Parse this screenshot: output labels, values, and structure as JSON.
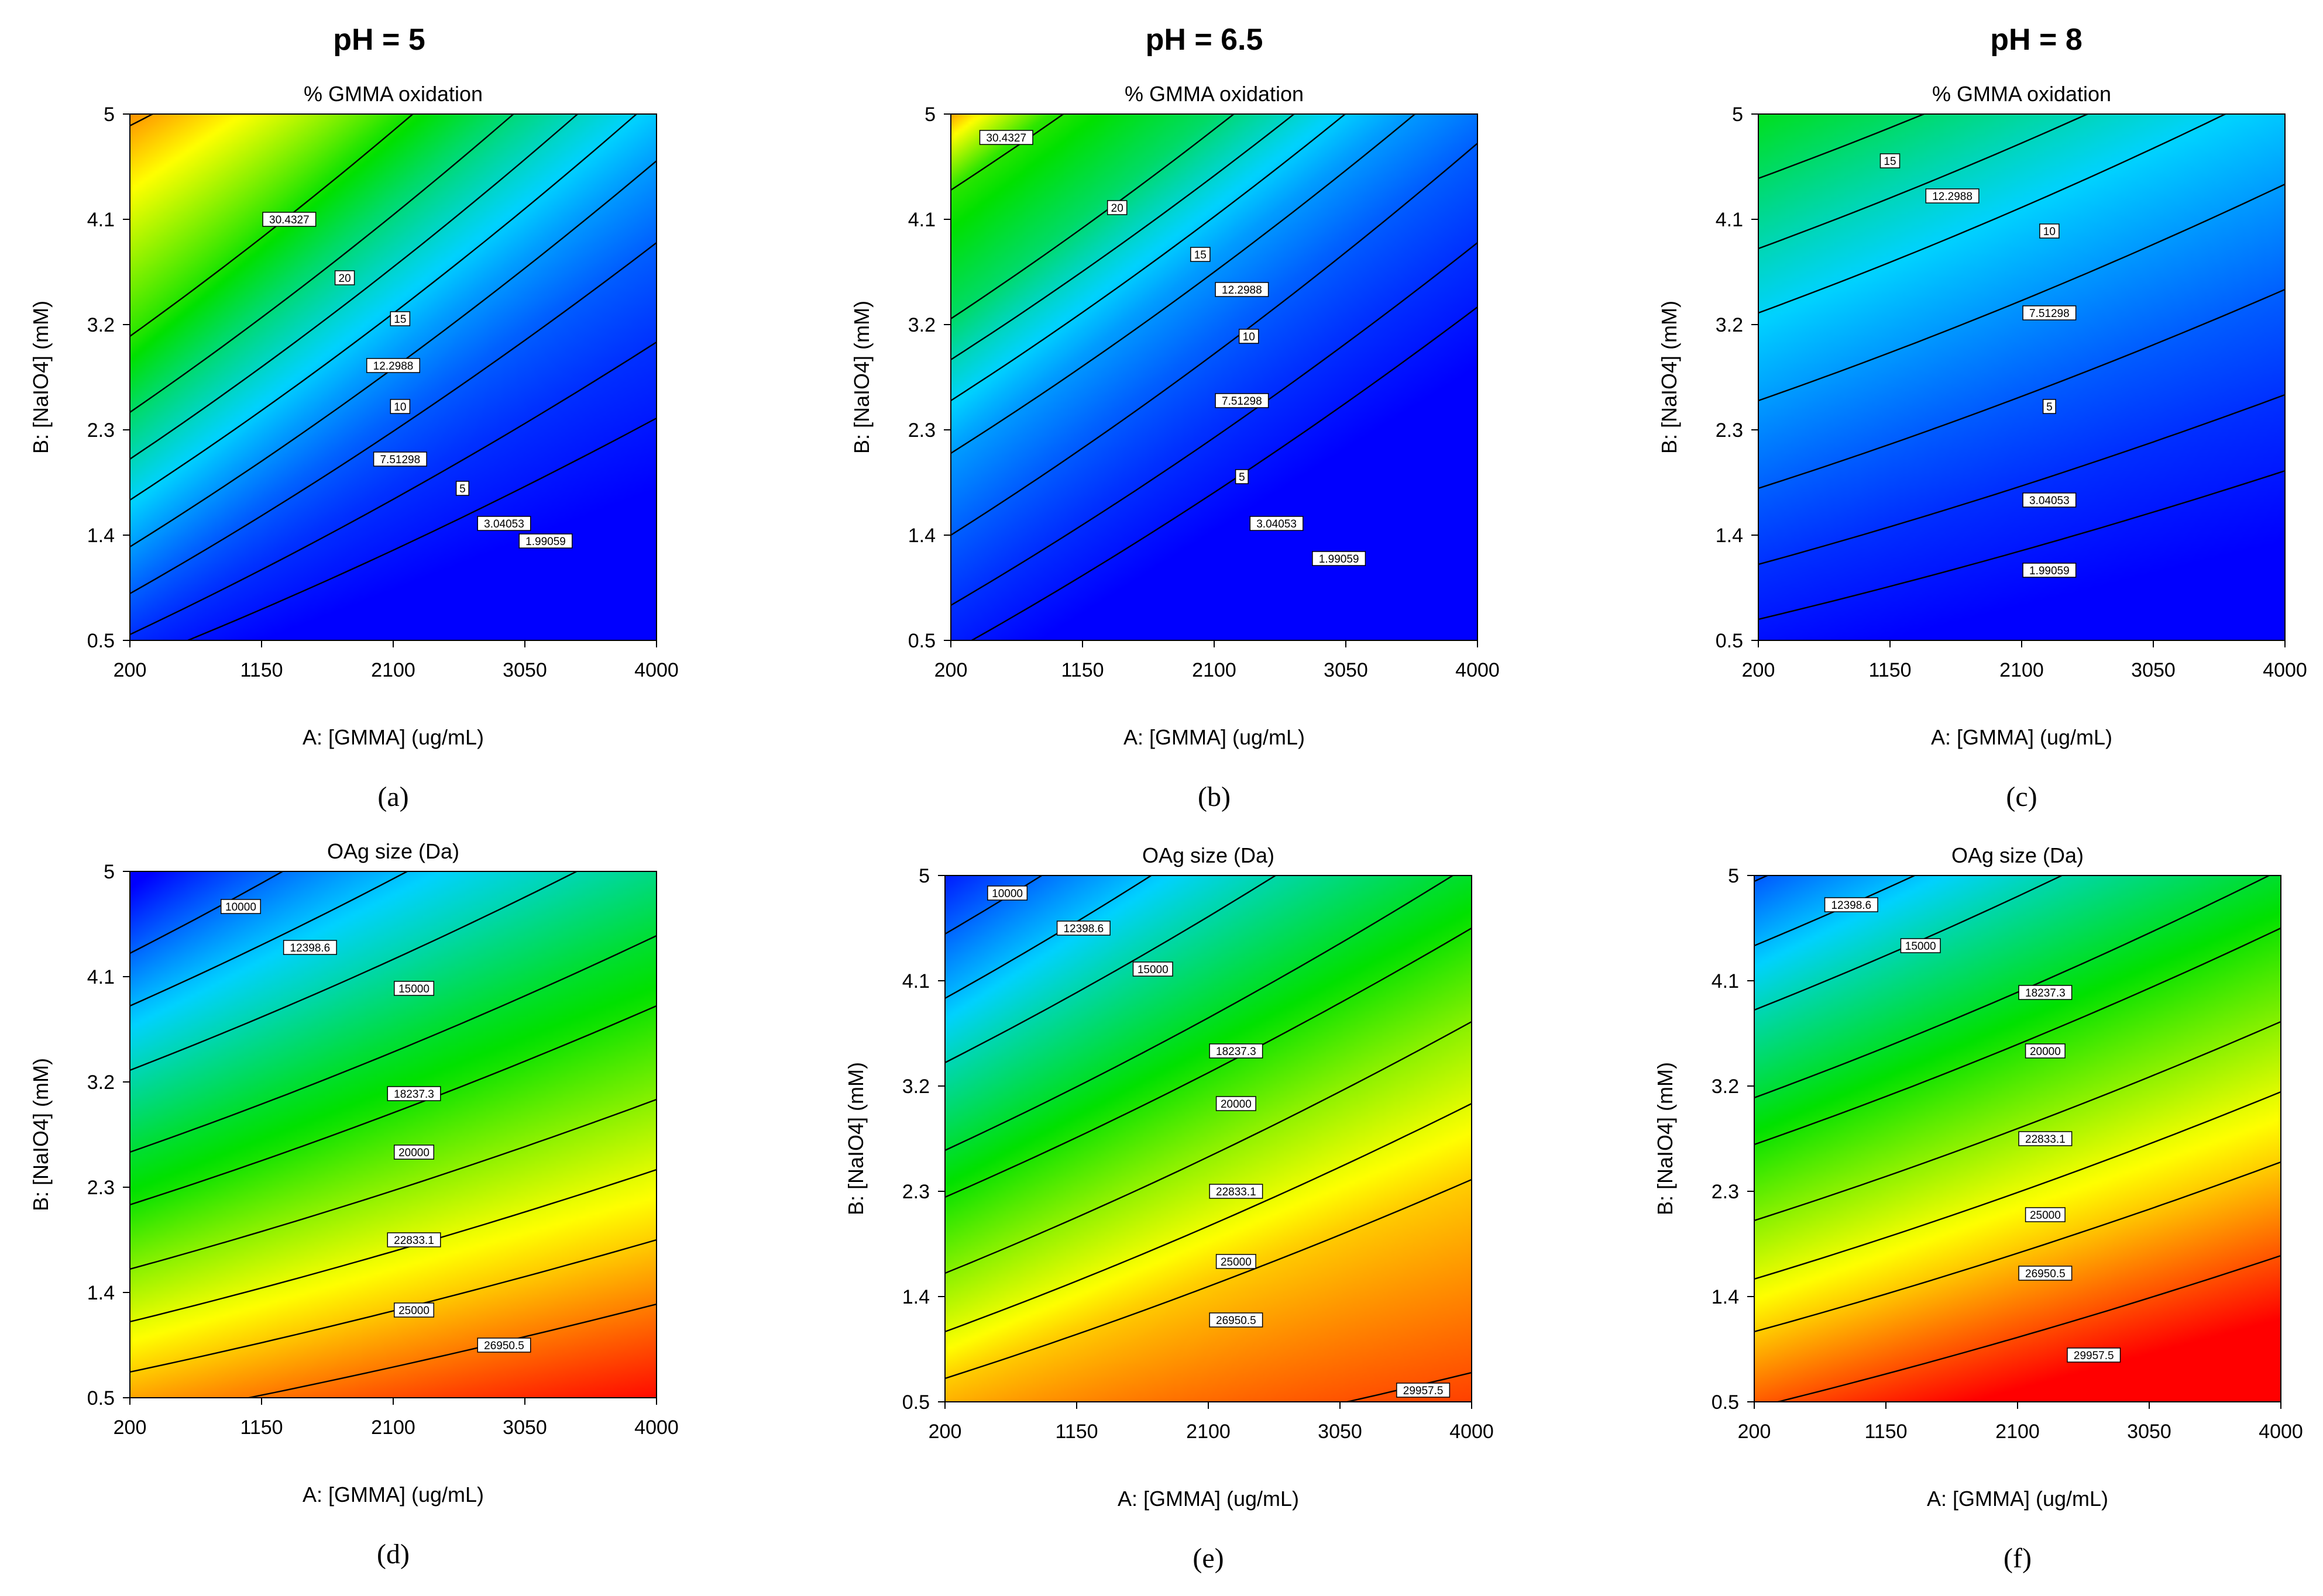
{
  "column_headers": [
    "pH = 5",
    "pH = 6.5",
    "pH = 8"
  ],
  "chart_data": [
    {
      "id": "a",
      "type": "contour",
      "panel_label": "(a)",
      "title": "% GMMA oxidation",
      "xlabel": "A: [GMMA] (ug/mL)",
      "ylabel": "B: [NaIO4] (mM)",
      "xlim": [
        200,
        4000
      ],
      "ylim": [
        0.5,
        5
      ],
      "xticks": [
        "200",
        "1150",
        "2100",
        "3050",
        "4000"
      ],
      "yticks": [
        "0.5",
        "1.4",
        "2.3",
        "3.2",
        "4.1",
        "5"
      ],
      "color_range": [
        1,
        36
      ],
      "colormap": "blue-to-red",
      "contours": [
        {
          "label": "30.4327",
          "y_at_xmin": 4.9,
          "y_at_xmax": 7.6,
          "label_x": 1350,
          "label_y": 4.1
        },
        {
          "label": "20",
          "y_at_xmin": 3.1,
          "y_at_xmax": 6.9,
          "label_x": 1750,
          "label_y": 3.6
        },
        {
          "label": "15",
          "y_at_xmin": 2.45,
          "y_at_xmax": 6.1,
          "label_x": 2150,
          "label_y": 3.25
        },
        {
          "label": "12.2988",
          "y_at_xmin": 2.05,
          "y_at_xmax": 5.6,
          "label_x": 2100,
          "label_y": 2.85
        },
        {
          "label": "10",
          "y_at_xmin": 1.7,
          "y_at_xmax": 5.15,
          "label_x": 2150,
          "label_y": 2.5
        },
        {
          "label": "7.51298",
          "y_at_xmin": 1.3,
          "y_at_xmax": 4.6,
          "label_x": 2150,
          "label_y": 2.05
        },
        {
          "label": "5",
          "y_at_xmin": 0.9,
          "y_at_xmax": 3.9,
          "label_x": 2600,
          "label_y": 1.8
        },
        {
          "label": "3.04053",
          "y_at_xmin": 0.55,
          "y_at_xmax": 3.05,
          "label_x": 2900,
          "label_y": 1.5
        },
        {
          "label": "1.99059",
          "y_at_xmin": 0.3,
          "y_at_xmax": 2.4,
          "label_x": 3200,
          "label_y": 1.35
        }
      ]
    },
    {
      "id": "b",
      "type": "contour",
      "panel_label": "(b)",
      "title": "% GMMA oxidation",
      "xlabel": "A: [GMMA] (ug/mL)",
      "ylabel": "B: [NaIO4] (mM)",
      "xlim": [
        200,
        4000
      ],
      "ylim": [
        0.5,
        5
      ],
      "xticks": [
        "200",
        "1150",
        "2100",
        "3050",
        "4000"
      ],
      "yticks": [
        "0.5",
        "1.4",
        "2.3",
        "3.2",
        "4.1",
        "5"
      ],
      "color_range": [
        1,
        36
      ],
      "colormap": "blue-to-red",
      "contours": [
        {
          "label": "30.4327",
          "y_at_xmin": 5.0,
          "y_at_xmax": 8.3,
          "label_x": 600,
          "label_y": 4.8
        },
        {
          "label": "20",
          "y_at_xmin": 4.35,
          "y_at_xmax": 7.8,
          "label_x": 1400,
          "label_y": 4.2
        },
        {
          "label": "15",
          "y_at_xmin": 3.25,
          "y_at_xmax": 6.75,
          "label_x": 2000,
          "label_y": 3.8
        },
        {
          "label": "12.2988",
          "y_at_xmin": 2.9,
          "y_at_xmax": 6.3,
          "label_x": 2300,
          "label_y": 3.5
        },
        {
          "label": "10",
          "y_at_xmin": 2.55,
          "y_at_xmax": 5.95,
          "label_x": 2350,
          "label_y": 3.1
        },
        {
          "label": "7.51298",
          "y_at_xmin": 2.1,
          "y_at_xmax": 5.45,
          "label_x": 2300,
          "label_y": 2.55
        },
        {
          "label": "5",
          "y_at_xmin": 1.4,
          "y_at_xmax": 4.75,
          "label_x": 2300,
          "label_y": 1.9
        },
        {
          "label": "3.04053",
          "y_at_xmin": 0.8,
          "y_at_xmax": 3.9,
          "label_x": 2550,
          "label_y": 1.5
        },
        {
          "label": "1.99059",
          "y_at_xmin": 0.4,
          "y_at_xmax": 3.35,
          "label_x": 3000,
          "label_y": 1.2
        }
      ]
    },
    {
      "id": "c",
      "type": "contour",
      "panel_label": "(c)",
      "title": "% GMMA oxidation",
      "xlabel": "A: [GMMA] (ug/mL)",
      "ylabel": "B: [NaIO4] (mM)",
      "xlim": [
        200,
        4000
      ],
      "ylim": [
        0.5,
        5
      ],
      "xticks": [
        "200",
        "1150",
        "2100",
        "3050",
        "4000"
      ],
      "yticks": [
        "0.5",
        "1.4",
        "2.3",
        "3.2",
        "4.1",
        "5"
      ],
      "color_range": [
        1,
        36
      ],
      "colormap": "blue-to-red",
      "contours": [
        {
          "label": "15",
          "y_at_xmin": 4.45,
          "y_at_xmax": 6.4,
          "label_x": 1150,
          "label_y": 4.6
        },
        {
          "label": "12.2988",
          "y_at_xmin": 3.85,
          "y_at_xmax": 5.8,
          "label_x": 1600,
          "label_y": 4.3
        },
        {
          "label": "10",
          "y_at_xmin": 3.3,
          "y_at_xmax": 5.25,
          "label_x": 2300,
          "label_y": 4.0
        },
        {
          "label": "7.51298",
          "y_at_xmin": 2.55,
          "y_at_xmax": 4.4,
          "label_x": 2300,
          "label_y": 3.3
        },
        {
          "label": "5",
          "y_at_xmin": 1.8,
          "y_at_xmax": 3.5,
          "label_x": 2300,
          "label_y": 2.5
        },
        {
          "label": "3.04053",
          "y_at_xmin": 1.15,
          "y_at_xmax": 2.6,
          "label_x": 2300,
          "label_y": 1.7
        },
        {
          "label": "1.99059",
          "y_at_xmin": 0.68,
          "y_at_xmax": 1.95,
          "label_x": 2300,
          "label_y": 1.1
        }
      ]
    },
    {
      "id": "d",
      "type": "contour",
      "panel_label": "(d)",
      "title": "OAg size (Da)",
      "xlabel": "A: [GMMA] (ug/mL)",
      "ylabel": "B: [NaIO4] (mM)",
      "xlim": [
        200,
        4000
      ],
      "ylim": [
        0.5,
        5
      ],
      "xticks": [
        "200",
        "1150",
        "2100",
        "3050",
        "4000"
      ],
      "yticks": [
        "0.5",
        "1.4",
        "2.3",
        "3.2",
        "4.1",
        "5"
      ],
      "color_range": [
        7000,
        32000
      ],
      "colormap": "blue-to-red-reversed",
      "contours": [
        {
          "label": "10000",
          "y_at_xmin": 4.3,
          "y_at_xmax": 7.0,
          "label_x": 1000,
          "label_y": 4.7
        },
        {
          "label": "12398.6",
          "y_at_xmin": 3.85,
          "y_at_xmax": 6.2,
          "label_x": 1500,
          "label_y": 4.35
        },
        {
          "label": "15000",
          "y_at_xmin": 3.3,
          "y_at_xmax": 5.35,
          "label_x": 2250,
          "label_y": 4.0
        },
        {
          "label": "18237.3",
          "y_at_xmin": 2.6,
          "y_at_xmax": 4.45,
          "label_x": 2250,
          "label_y": 3.1
        },
        {
          "label": "20000",
          "y_at_xmin": 2.15,
          "y_at_xmax": 3.85,
          "label_x": 2250,
          "label_y": 2.6
        },
        {
          "label": "22833.1",
          "y_at_xmin": 1.6,
          "y_at_xmax": 3.05,
          "label_x": 2250,
          "label_y": 1.85
        },
        {
          "label": "25000",
          "y_at_xmin": 1.15,
          "y_at_xmax": 2.45,
          "label_x": 2250,
          "label_y": 1.25
        },
        {
          "label": "26950.5",
          "y_at_xmin": 0.72,
          "y_at_xmax": 1.85,
          "label_x": 2900,
          "label_y": 0.95
        },
        {
          "label": "",
          "y_at_xmin": 0.3,
          "y_at_xmax": 1.3,
          "label_x": 0,
          "label_y": 0
        }
      ]
    },
    {
      "id": "e",
      "type": "contour",
      "panel_label": "(e)",
      "title": "OAg size (Da)",
      "xlabel": "A: [GMMA] (ug/mL)",
      "ylabel": "B: [NaIO4] (mM)",
      "xlim": [
        200,
        4000
      ],
      "ylim": [
        0.5,
        5
      ],
      "xticks": [
        "200",
        "1150",
        "2100",
        "3050",
        "4000"
      ],
      "yticks": [
        "0.5",
        "1.4",
        "2.3",
        "3.2",
        "4.1",
        "5"
      ],
      "color_range": [
        7000,
        32000
      ],
      "colormap": "blue-to-red-reversed",
      "contours": [
        {
          "label": "10000",
          "y_at_xmin": 4.5,
          "y_at_xmax": 7.6,
          "label_x": 650,
          "label_y": 4.85
        },
        {
          "label": "12398.6",
          "y_at_xmin": 3.95,
          "y_at_xmax": 6.9,
          "label_x": 1200,
          "label_y": 4.55
        },
        {
          "label": "15000",
          "y_at_xmin": 3.4,
          "y_at_xmax": 6.1,
          "label_x": 1700,
          "label_y": 4.2
        },
        {
          "label": "18237.3",
          "y_at_xmin": 2.65,
          "y_at_xmax": 5.1,
          "label_x": 2300,
          "label_y": 3.5
        },
        {
          "label": "20000",
          "y_at_xmin": 2.25,
          "y_at_xmax": 4.55,
          "label_x": 2300,
          "label_y": 3.05
        },
        {
          "label": "22833.1",
          "y_at_xmin": 1.6,
          "y_at_xmax": 3.75,
          "label_x": 2300,
          "label_y": 2.3
        },
        {
          "label": "25000",
          "y_at_xmin": 1.1,
          "y_at_xmax": 3.05,
          "label_x": 2300,
          "label_y": 1.7
        },
        {
          "label": "26950.5",
          "y_at_xmin": 0.7,
          "y_at_xmax": 2.4,
          "label_x": 2300,
          "label_y": 1.2
        },
        {
          "label": "29957.5",
          "y_at_xmin": -0.2,
          "y_at_xmax": 0.75,
          "label_x": 3650,
          "label_y": 0.6
        }
      ]
    },
    {
      "id": "f",
      "type": "contour",
      "panel_label": "(f)",
      "title": "OAg size (Da)",
      "xlabel": "A: [GMMA] (ug/mL)",
      "ylabel": "B: [NaIO4] (mM)",
      "xlim": [
        200,
        4000
      ],
      "ylim": [
        0.5,
        5
      ],
      "xticks": [
        "200",
        "1150",
        "2100",
        "3050",
        "4000"
      ],
      "yticks": [
        "0.5",
        "1.4",
        "2.3",
        "3.2",
        "4.1",
        "5"
      ],
      "color_range": [
        7000,
        32000
      ],
      "colormap": "blue-to-red-reversed",
      "contours": [
        {
          "label": "",
          "y_at_xmin": 4.95,
          "y_at_xmax": 7.3,
          "label_x": 0,
          "label_y": 0
        },
        {
          "label": "12398.6",
          "y_at_xmin": 4.4,
          "y_at_xmax": 6.6,
          "label_x": 900,
          "label_y": 4.75
        },
        {
          "label": "15000",
          "y_at_xmin": 3.85,
          "y_at_xmax": 5.95,
          "label_x": 1400,
          "label_y": 4.4
        },
        {
          "label": "18237.3",
          "y_at_xmin": 3.1,
          "y_at_xmax": 5.05,
          "label_x": 2300,
          "label_y": 4.0
        },
        {
          "label": "20000",
          "y_at_xmin": 2.7,
          "y_at_xmax": 4.55,
          "label_x": 2300,
          "label_y": 3.5
        },
        {
          "label": "22833.1",
          "y_at_xmin": 2.05,
          "y_at_xmax": 3.75,
          "label_x": 2300,
          "label_y": 2.75
        },
        {
          "label": "25000",
          "y_at_xmin": 1.55,
          "y_at_xmax": 3.15,
          "label_x": 2300,
          "label_y": 2.1
        },
        {
          "label": "26950.5",
          "y_at_xmin": 1.1,
          "y_at_xmax": 2.55,
          "label_x": 2300,
          "label_y": 1.6
        },
        {
          "label": "29957.5",
          "y_at_xmin": 0.45,
          "y_at_xmax": 1.75,
          "label_x": 2650,
          "label_y": 0.9
        }
      ]
    }
  ]
}
